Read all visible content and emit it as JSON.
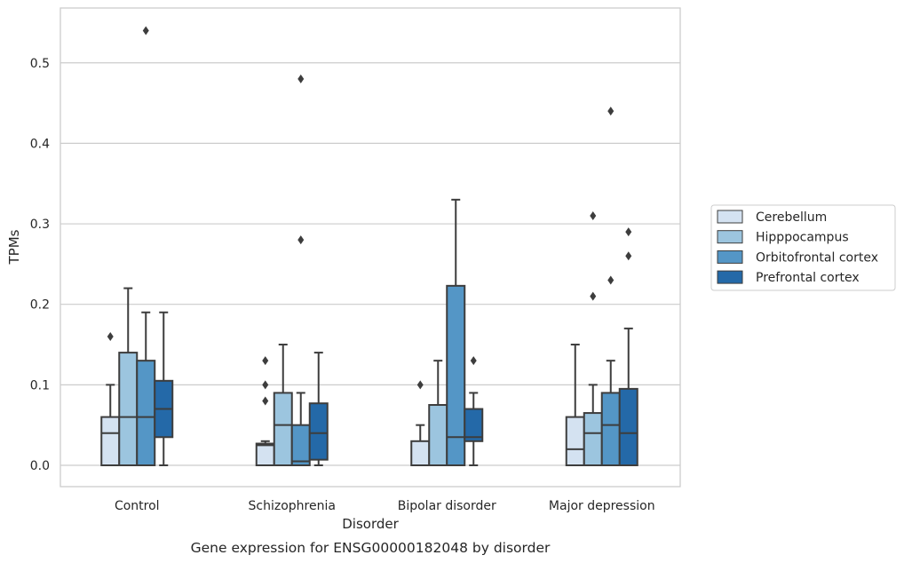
{
  "chart_data": {
    "type": "box",
    "xlabel": "Disorder",
    "ylabel": "TPMs",
    "caption": "Gene expression for ENSG00000182048 by disorder",
    "ylim": [
      -0.027,
      0.567
    ],
    "yticks": [
      0.0,
      0.1,
      0.2,
      0.3,
      0.4,
      0.5
    ],
    "ytick_labels": [
      "0.0",
      "0.1",
      "0.2",
      "0.3",
      "0.4",
      "0.5"
    ],
    "grid": "horizontal",
    "legend_position": "right",
    "categories": [
      "Control",
      "Schizophrenia",
      "Bipolar disorder",
      "Major depression"
    ],
    "series": [
      {
        "name": "Cerebellum",
        "color": "#d4e2f1",
        "boxes": [
          {
            "q1": 0.0,
            "median": 0.04,
            "q3": 0.06,
            "whisker_low": 0.0,
            "whisker_high": 0.1,
            "outliers": [
              0.16
            ]
          },
          {
            "q1": 0.0,
            "median": 0.025,
            "q3": 0.027,
            "whisker_low": 0.0,
            "whisker_high": 0.03,
            "outliers": [
              0.13,
              0.1,
              0.08
            ]
          },
          {
            "q1": 0.0,
            "median": 0.0,
            "q3": 0.03,
            "whisker_low": 0.0,
            "whisker_high": 0.05,
            "outliers": [
              0.1
            ]
          },
          {
            "q1": 0.0,
            "median": 0.02,
            "q3": 0.06,
            "whisker_low": 0.0,
            "whisker_high": 0.15,
            "outliers": []
          }
        ]
      },
      {
        "name": "Hipppocampus",
        "color": "#9cc5df",
        "boxes": [
          {
            "q1": 0.0,
            "median": 0.06,
            "q3": 0.14,
            "whisker_low": 0.0,
            "whisker_high": 0.22,
            "outliers": []
          },
          {
            "q1": 0.0,
            "median": 0.05,
            "q3": 0.09,
            "whisker_low": 0.0,
            "whisker_high": 0.15,
            "outliers": []
          },
          {
            "q1": 0.0,
            "median": 0.0,
            "q3": 0.075,
            "whisker_low": 0.0,
            "whisker_high": 0.13,
            "outliers": []
          },
          {
            "q1": 0.0,
            "median": 0.04,
            "q3": 0.065,
            "whisker_low": 0.0,
            "whisker_high": 0.1,
            "outliers": [
              0.31,
              0.21
            ]
          }
        ]
      },
      {
        "name": "Orbitofrontal cortex",
        "color": "#5496c6",
        "boxes": [
          {
            "q1": 0.0,
            "median": 0.06,
            "q3": 0.13,
            "whisker_low": 0.0,
            "whisker_high": 0.19,
            "outliers": [
              0.54
            ]
          },
          {
            "q1": 0.0,
            "median": 0.005,
            "q3": 0.05,
            "whisker_low": 0.0,
            "whisker_high": 0.09,
            "outliers": [
              0.48,
              0.28
            ]
          },
          {
            "q1": 0.0,
            "median": 0.035,
            "q3": 0.223,
            "whisker_low": 0.0,
            "whisker_high": 0.33,
            "outliers": []
          },
          {
            "q1": 0.0,
            "median": 0.05,
            "q3": 0.09,
            "whisker_low": 0.0,
            "whisker_high": 0.13,
            "outliers": [
              0.44,
              0.23
            ]
          }
        ]
      },
      {
        "name": "Prefrontal cortex",
        "color": "#2469a8",
        "boxes": [
          {
            "q1": 0.035,
            "median": 0.07,
            "q3": 0.105,
            "whisker_low": 0.0,
            "whisker_high": 0.19,
            "outliers": []
          },
          {
            "q1": 0.007,
            "median": 0.04,
            "q3": 0.077,
            "whisker_low": 0.0,
            "whisker_high": 0.14,
            "outliers": []
          },
          {
            "q1": 0.03,
            "median": 0.035,
            "q3": 0.07,
            "whisker_low": 0.0,
            "whisker_high": 0.09,
            "outliers": [
              0.13
            ]
          },
          {
            "q1": 0.0,
            "median": 0.04,
            "q3": 0.095,
            "whisker_low": 0.0,
            "whisker_high": 0.17,
            "outliers": [
              0.29,
              0.26
            ]
          }
        ]
      }
    ]
  }
}
